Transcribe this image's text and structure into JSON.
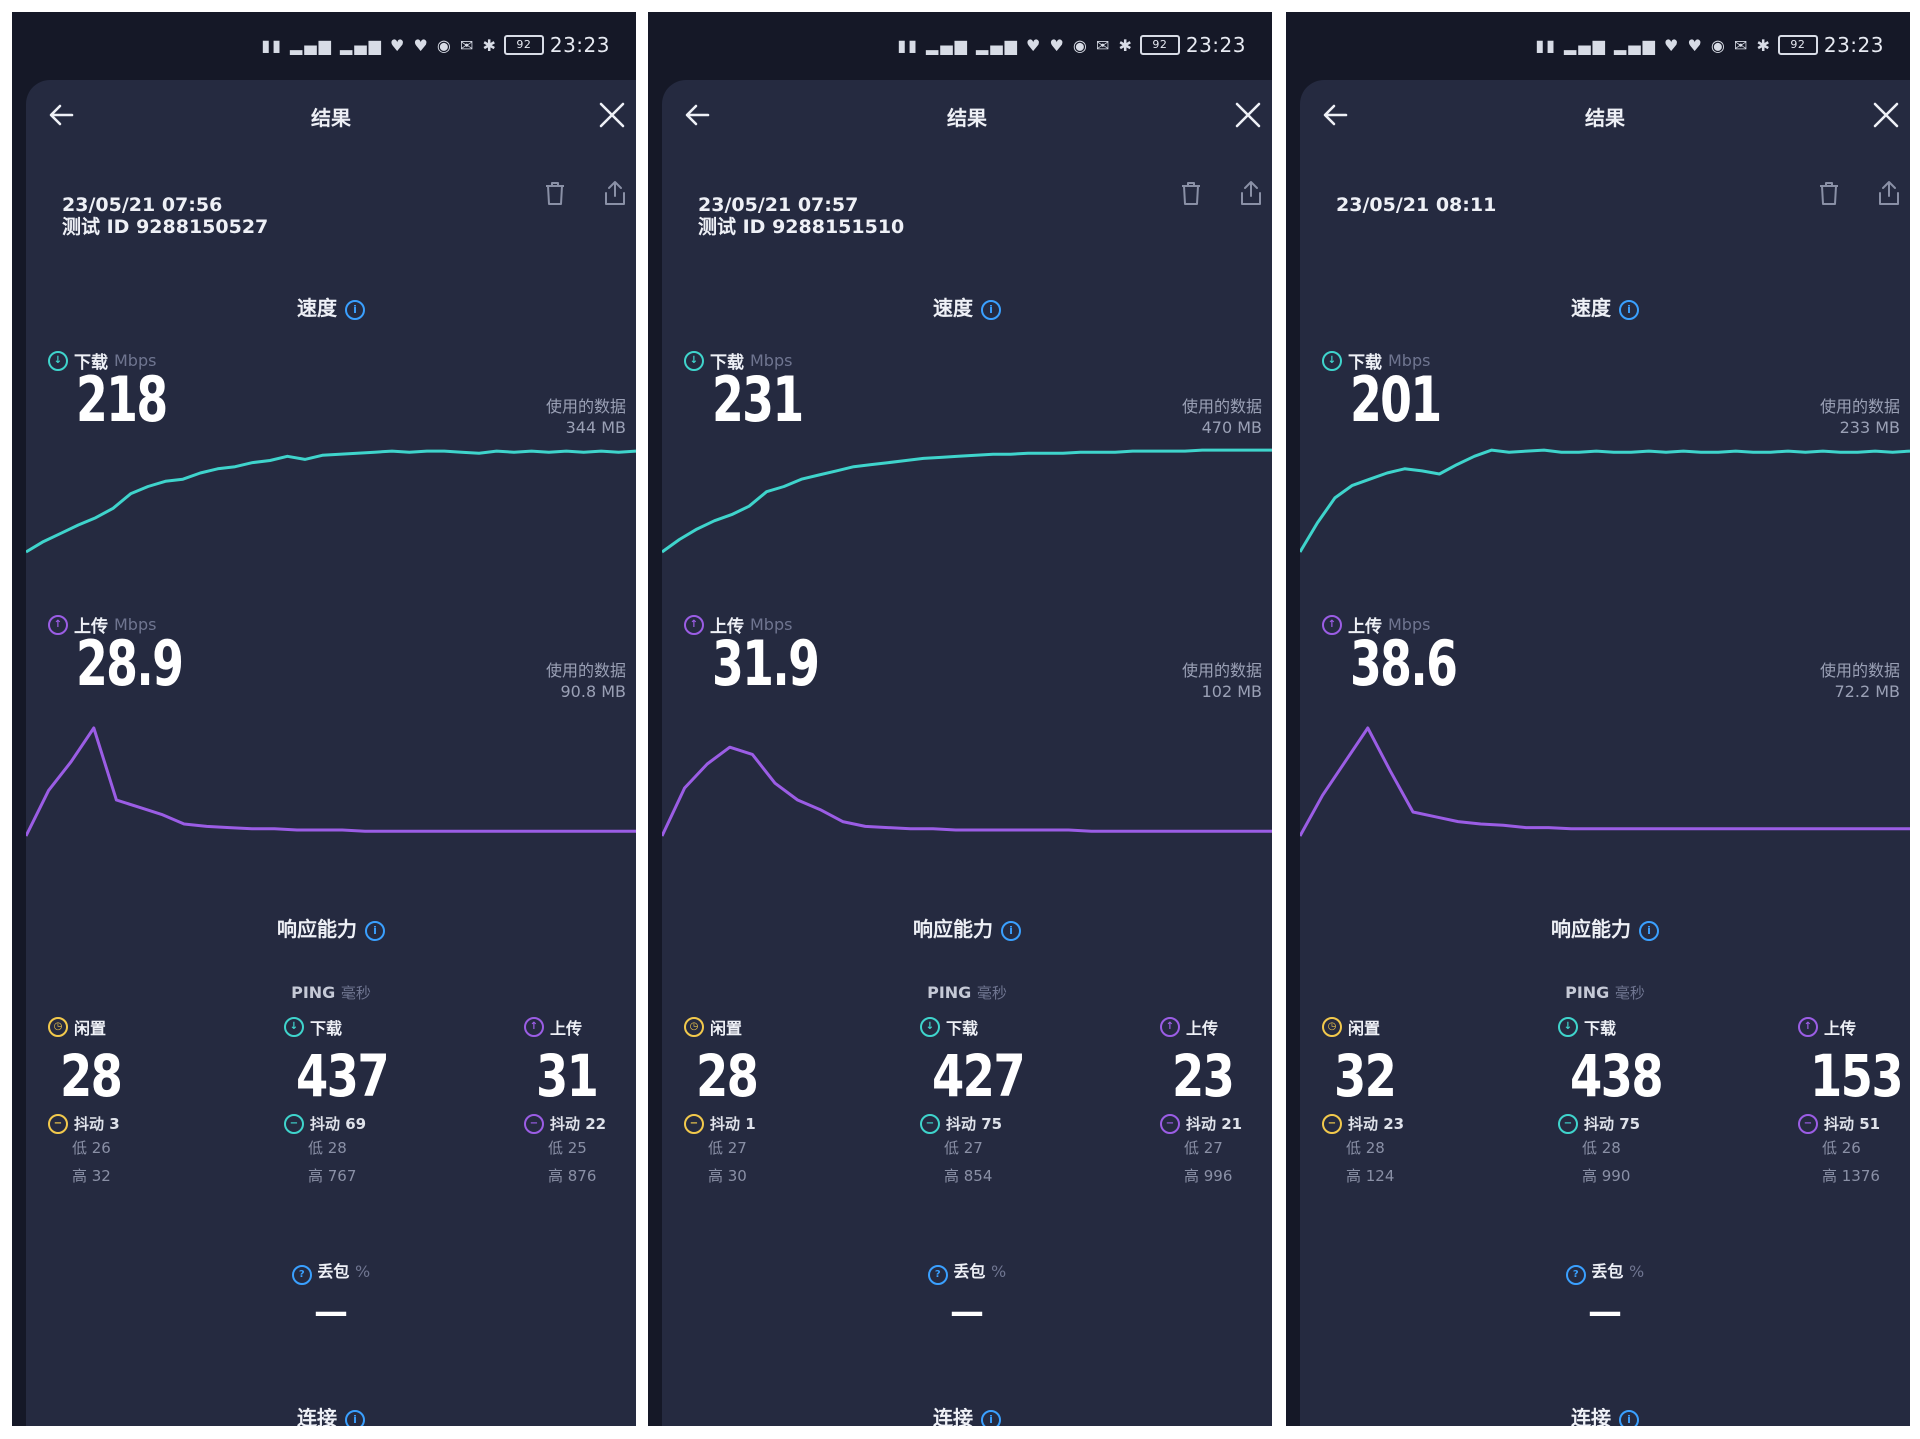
{
  "colors": {
    "download": "#3fd4cc",
    "upload": "#9b5de5",
    "idle": "#f2c94c",
    "info": "#3aa0ff",
    "background": "#151827",
    "card": "#252a40"
  },
  "screens": [
    {
      "status": {
        "time": "23:23",
        "battery": "92"
      },
      "header": {
        "title": "结果"
      },
      "meta": {
        "datetime": "23/05/21 07:56",
        "test_id": "测试 ID 9288150527"
      },
      "speed": {
        "title": "速度",
        "download": {
          "label": "下载",
          "unit": "Mbps",
          "value": "218",
          "data_label": "使用的数据",
          "data_value": "344 MB",
          "curve": [
            0.0,
            0.1,
            0.18,
            0.26,
            0.33,
            0.42,
            0.56,
            0.63,
            0.68,
            0.7,
            0.76,
            0.8,
            0.82,
            0.86,
            0.88,
            0.92,
            0.89,
            0.93,
            0.94,
            0.95,
            0.96,
            0.97,
            0.96,
            0.97,
            0.97,
            0.96,
            0.95,
            0.97,
            0.96,
            0.97,
            0.96,
            0.97,
            0.96,
            0.97,
            0.96,
            0.97
          ]
        },
        "upload": {
          "label": "上传",
          "unit": "Mbps",
          "value": "28.9",
          "data_label": "使用的数据",
          "data_value": "90.8 MB",
          "curve": [
            0.0,
            0.38,
            0.62,
            0.9,
            0.3,
            0.24,
            0.18,
            0.1,
            0.08,
            0.07,
            0.06,
            0.06,
            0.05,
            0.05,
            0.05,
            0.04,
            0.04,
            0.04,
            0.04,
            0.04,
            0.04,
            0.04,
            0.04,
            0.04,
            0.04,
            0.04,
            0.04,
            0.04
          ]
        }
      },
      "responsiveness": {
        "title": "响应能力",
        "ping_title": "PING",
        "ping_unit": "毫秒",
        "idle": {
          "label": "闲置",
          "value": "28",
          "jitter": "抖动 3",
          "low": "低 26",
          "high": "高 32"
        },
        "download": {
          "label": "下载",
          "value": "437",
          "jitter": "抖动 69",
          "low": "低 28",
          "high": "高 767"
        },
        "upload": {
          "label": "上传",
          "value": "31",
          "jitter": "抖动 22",
          "low": "低 25",
          "high": "高 876"
        }
      },
      "packet_loss": {
        "label": "丢包",
        "unit": "%",
        "value": "—"
      },
      "connection": {
        "title": "连接"
      }
    },
    {
      "status": {
        "time": "23:23",
        "battery": "92"
      },
      "header": {
        "title": "结果"
      },
      "meta": {
        "datetime": "23/05/21 07:57",
        "test_id": "测试 ID 9288151510"
      },
      "speed": {
        "title": "速度",
        "download": {
          "label": "下载",
          "unit": "Mbps",
          "value": "231",
          "data_label": "使用的数据",
          "data_value": "470 MB",
          "curve": [
            0.0,
            0.12,
            0.22,
            0.3,
            0.36,
            0.44,
            0.58,
            0.63,
            0.7,
            0.74,
            0.78,
            0.82,
            0.84,
            0.86,
            0.88,
            0.9,
            0.91,
            0.92,
            0.93,
            0.94,
            0.94,
            0.95,
            0.95,
            0.95,
            0.96,
            0.96,
            0.96,
            0.97,
            0.97,
            0.97,
            0.97,
            0.98,
            0.98,
            0.98,
            0.98,
            0.98
          ]
        },
        "upload": {
          "label": "上传",
          "unit": "Mbps",
          "value": "31.9",
          "data_label": "使用的数据",
          "data_value": "102 MB",
          "curve": [
            0.0,
            0.4,
            0.6,
            0.74,
            0.68,
            0.44,
            0.3,
            0.22,
            0.12,
            0.08,
            0.07,
            0.06,
            0.06,
            0.05,
            0.05,
            0.05,
            0.05,
            0.05,
            0.05,
            0.04,
            0.04,
            0.04,
            0.04,
            0.04,
            0.04,
            0.04,
            0.04,
            0.04
          ]
        }
      },
      "responsiveness": {
        "title": "响应能力",
        "ping_title": "PING",
        "ping_unit": "毫秒",
        "idle": {
          "label": "闲置",
          "value": "28",
          "jitter": "抖动 1",
          "low": "低 27",
          "high": "高 30"
        },
        "download": {
          "label": "下载",
          "value": "427",
          "jitter": "抖动 75",
          "low": "低 27",
          "high": "高 854"
        },
        "upload": {
          "label": "上传",
          "value": "23",
          "jitter": "抖动 21",
          "low": "低 27",
          "high": "高 996"
        }
      },
      "packet_loss": {
        "label": "丢包",
        "unit": "%",
        "value": "—"
      },
      "connection": {
        "title": "连接"
      }
    },
    {
      "status": {
        "time": "23:23",
        "battery": "92"
      },
      "header": {
        "title": "结果"
      },
      "meta": {
        "datetime": "23/05/21 08:11",
        "test_id": ""
      },
      "speed": {
        "title": "速度",
        "download": {
          "label": "下载",
          "unit": "Mbps",
          "value": "201",
          "data_label": "使用的数据",
          "data_value": "233 MB",
          "curve": [
            0.0,
            0.28,
            0.52,
            0.64,
            0.7,
            0.76,
            0.8,
            0.78,
            0.75,
            0.84,
            0.92,
            0.98,
            0.96,
            0.97,
            0.98,
            0.96,
            0.96,
            0.97,
            0.96,
            0.96,
            0.97,
            0.96,
            0.97,
            0.96,
            0.96,
            0.97,
            0.96,
            0.96,
            0.97,
            0.96,
            0.97,
            0.96,
            0.96,
            0.97,
            0.96,
            0.97
          ]
        },
        "upload": {
          "label": "上传",
          "unit": "Mbps",
          "value": "38.6",
          "data_label": "使用的数据",
          "data_value": "72.2 MB",
          "curve": [
            0.0,
            0.34,
            0.62,
            0.9,
            0.54,
            0.2,
            0.16,
            0.12,
            0.1,
            0.09,
            0.07,
            0.07,
            0.06,
            0.06,
            0.06,
            0.06,
            0.06,
            0.06,
            0.06,
            0.06,
            0.06,
            0.06,
            0.06,
            0.06,
            0.06,
            0.06,
            0.06,
            0.06
          ]
        }
      },
      "responsiveness": {
        "title": "响应能力",
        "ping_title": "PING",
        "ping_unit": "毫秒",
        "idle": {
          "label": "闲置",
          "value": "32",
          "jitter": "抖动 23",
          "low": "低 28",
          "high": "高 124"
        },
        "download": {
          "label": "下载",
          "value": "438",
          "jitter": "抖动 75",
          "low": "低 28",
          "high": "高 990"
        },
        "upload": {
          "label": "上传",
          "value": "153",
          "jitter": "抖动 51",
          "low": "低 26",
          "high": "高 1376"
        }
      },
      "packet_loss": {
        "label": "丢包",
        "unit": "%",
        "value": "—"
      },
      "connection": {
        "title": "连接"
      }
    }
  ]
}
